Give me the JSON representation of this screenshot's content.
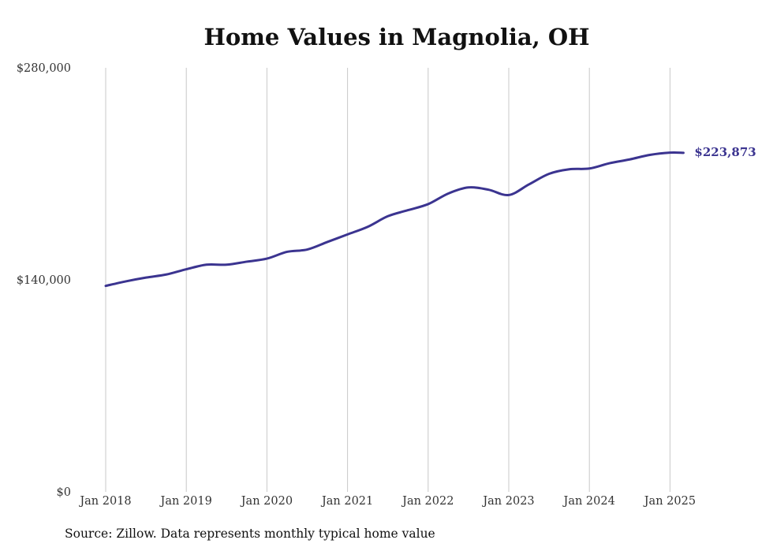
{
  "chart_data": {
    "type": "line",
    "title": "Home Values in Magnolia, OH",
    "xlabel": "",
    "ylabel": "",
    "ylim": [
      0,
      280000
    ],
    "y_ticks": [
      0,
      140000,
      280000
    ],
    "y_tick_labels": [
      "$0",
      "$140,000",
      "$280,000"
    ],
    "x_ticks": [
      "2018-01",
      "2019-01",
      "2020-01",
      "2021-01",
      "2022-01",
      "2023-01",
      "2024-01",
      "2025-01"
    ],
    "x_tick_labels": [
      "Jan 2018",
      "Jan 2019",
      "Jan 2020",
      "Jan 2021",
      "Jan 2022",
      "Jan 2023",
      "Jan 2024",
      "Jan 2025"
    ],
    "grid": "vertical",
    "line_color": "#3b3490",
    "end_label": "$223,873",
    "series": [
      {
        "x": [
          "2018-01",
          "2018-04",
          "2018-07",
          "2018-10",
          "2019-01",
          "2019-04",
          "2019-07",
          "2019-10",
          "2020-01",
          "2020-04",
          "2020-07",
          "2020-10",
          "2021-01",
          "2021-04",
          "2021-07",
          "2021-10",
          "2022-01",
          "2022-04",
          "2022-07",
          "2022-10",
          "2023-01",
          "2023-04",
          "2023-07",
          "2023-10",
          "2024-01",
          "2024-04",
          "2024-07",
          "2024-10",
          "2025-01",
          "2025-03"
        ],
        "values": [
          136000,
          139000,
          141500,
          143500,
          147000,
          150000,
          150000,
          152000,
          154000,
          158500,
          160000,
          165000,
          170000,
          175000,
          182000,
          186000,
          190000,
          197000,
          201000,
          199500,
          196000,
          203000,
          210000,
          213000,
          213500,
          217000,
          219500,
          222500,
          224000,
          223873
        ]
      }
    ]
  },
  "source_note": "Source: Zillow. Data represents monthly typical home value"
}
